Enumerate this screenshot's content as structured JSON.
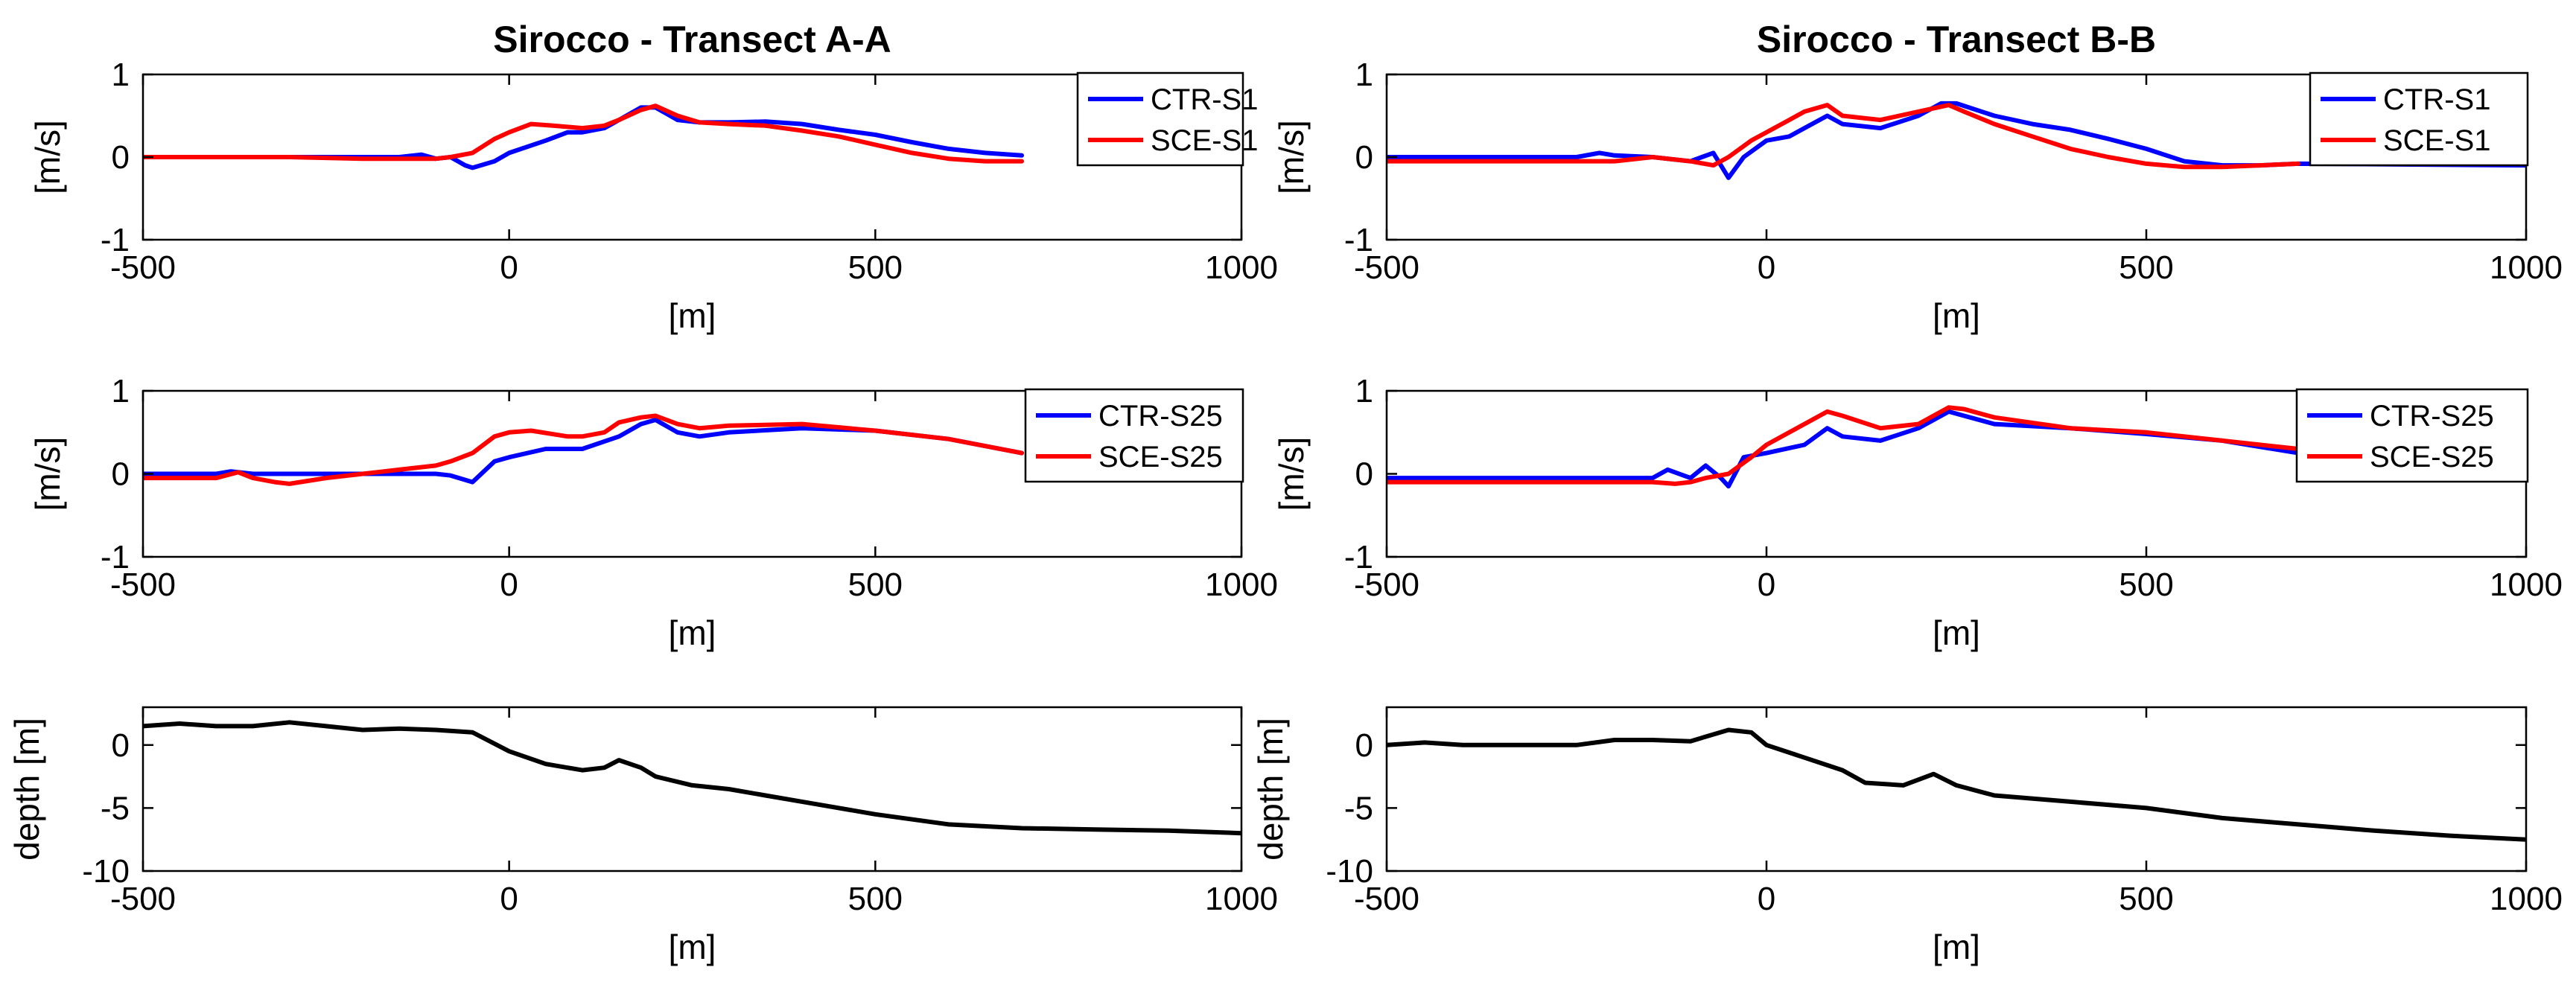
{
  "chart_data": [
    {
      "type": "line",
      "title": "Sirocco - Transect A-A",
      "xlabel": "[m]",
      "ylabel": "[m/s]",
      "xlim": [
        -500,
        1000
      ],
      "ylim": [
        -1,
        1
      ],
      "xticks": [
        -500,
        0,
        500,
        1000
      ],
      "yticks": [
        -1,
        0,
        1
      ],
      "legend": "top-right",
      "series": [
        {
          "name": "CTR-S1",
          "color": "#0000ff",
          "x": [
            -500,
            -400,
            -300,
            -200,
            -150,
            -120,
            -100,
            -80,
            -60,
            -50,
            -20,
            0,
            50,
            80,
            100,
            130,
            150,
            180,
            200,
            230,
            260,
            300,
            350,
            400,
            450,
            500,
            550,
            600,
            650,
            700
          ],
          "y": [
            0,
            0,
            0,
            0,
            0,
            0.03,
            -0.02,
            0,
            -0.1,
            -0.13,
            -0.05,
            0.05,
            0.2,
            0.3,
            0.3,
            0.35,
            0.45,
            0.6,
            0.6,
            0.45,
            0.42,
            0.42,
            0.43,
            0.4,
            0.33,
            0.27,
            0.18,
            0.1,
            0.05,
            0.02
          ]
        },
        {
          "name": "SCE-S1",
          "color": "#ff0000",
          "x": [
            -500,
            -400,
            -300,
            -200,
            -150,
            -100,
            -80,
            -50,
            -20,
            0,
            30,
            60,
            100,
            130,
            150,
            180,
            200,
            230,
            260,
            300,
            350,
            400,
            450,
            500,
            550,
            600,
            650,
            700
          ],
          "y": [
            0,
            0,
            0,
            -0.02,
            -0.02,
            -0.02,
            0,
            0.05,
            0.22,
            0.3,
            0.4,
            0.38,
            0.35,
            0.38,
            0.45,
            0.57,
            0.62,
            0.5,
            0.42,
            0.4,
            0.38,
            0.32,
            0.25,
            0.15,
            0.05,
            -0.02,
            -0.05,
            -0.05
          ]
        }
      ]
    },
    {
      "type": "line",
      "title": "Sirocco - Transect B-B",
      "xlabel": "[m]",
      "ylabel": "[m/s]",
      "xlim": [
        -500,
        1000
      ],
      "ylim": [
        -1,
        1
      ],
      "xticks": [
        -500,
        0,
        500,
        1000
      ],
      "yticks": [
        -1,
        0,
        1
      ],
      "legend": "top-right",
      "series": [
        {
          "name": "CTR-S1",
          "color": "#0000ff",
          "x": [
            -500,
            -400,
            -300,
            -250,
            -220,
            -200,
            -150,
            -100,
            -70,
            -50,
            -30,
            0,
            30,
            50,
            80,
            100,
            150,
            200,
            230,
            250,
            300,
            350,
            400,
            450,
            500,
            550,
            600,
            650,
            700,
            1000
          ],
          "y": [
            0,
            0,
            0,
            0,
            0.05,
            0.02,
            0,
            -0.05,
            0.05,
            -0.25,
            0,
            0.2,
            0.25,
            0.35,
            0.5,
            0.4,
            0.35,
            0.5,
            0.65,
            0.65,
            0.5,
            0.4,
            0.33,
            0.22,
            0.1,
            -0.05,
            -0.1,
            -0.1,
            -0.08,
            -0.1
          ]
        },
        {
          "name": "SCE-S1",
          "color": "#ff0000",
          "x": [
            -500,
            -400,
            -300,
            -200,
            -150,
            -100,
            -70,
            -50,
            -20,
            0,
            30,
            50,
            80,
            100,
            150,
            200,
            240,
            260,
            300,
            350,
            400,
            450,
            500,
            550,
            600,
            650,
            700
          ],
          "y": [
            -0.05,
            -0.05,
            -0.05,
            -0.05,
            0,
            -0.05,
            -0.1,
            0,
            0.2,
            0.3,
            0.45,
            0.55,
            0.63,
            0.5,
            0.45,
            0.55,
            0.63,
            0.55,
            0.4,
            0.25,
            0.1,
            0,
            -0.08,
            -0.12,
            -0.12,
            -0.1,
            -0.08
          ]
        }
      ]
    },
    {
      "type": "line",
      "title": "",
      "xlabel": "[m]",
      "ylabel": "[m/s]",
      "xlim": [
        -500,
        1000
      ],
      "ylim": [
        -1,
        1
      ],
      "xticks": [
        -500,
        0,
        500,
        1000
      ],
      "yticks": [
        -1,
        0,
        1
      ],
      "legend": "top-right",
      "series": [
        {
          "name": "CTR-S25",
          "color": "#0000ff",
          "x": [
            -500,
            -400,
            -380,
            -350,
            -300,
            -200,
            -100,
            -80,
            -50,
            -20,
            0,
            50,
            100,
            150,
            180,
            200,
            230,
            260,
            300,
            400,
            500,
            600,
            700
          ],
          "y": [
            0,
            0,
            0.03,
            0,
            0,
            0,
            0,
            -0.02,
            -0.1,
            0.15,
            0.2,
            0.3,
            0.3,
            0.45,
            0.6,
            0.65,
            0.5,
            0.45,
            0.5,
            0.55,
            0.52,
            0.42,
            0.25
          ]
        },
        {
          "name": "SCE-S25",
          "color": "#ff0000",
          "x": [
            -500,
            -400,
            -370,
            -350,
            -320,
            -300,
            -250,
            -200,
            -150,
            -100,
            -80,
            -50,
            -20,
            0,
            30,
            80,
            100,
            130,
            150,
            180,
            200,
            230,
            260,
            300,
            400,
            500,
            600,
            700
          ],
          "y": [
            -0.05,
            -0.05,
            0.02,
            -0.05,
            -0.1,
            -0.12,
            -0.05,
            0,
            0.05,
            0.1,
            0.15,
            0.25,
            0.45,
            0.5,
            0.52,
            0.45,
            0.45,
            0.5,
            0.62,
            0.68,
            0.7,
            0.6,
            0.55,
            0.58,
            0.6,
            0.52,
            0.42,
            0.25
          ]
        }
      ]
    },
    {
      "type": "line",
      "title": "",
      "xlabel": "[m]",
      "ylabel": "[m/s]",
      "xlim": [
        -500,
        1000
      ],
      "ylim": [
        -1,
        1
      ],
      "xticks": [
        -500,
        0,
        500,
        1000
      ],
      "yticks": [
        -1,
        0,
        1
      ],
      "legend": "top-right",
      "series": [
        {
          "name": "CTR-S25",
          "color": "#0000ff",
          "x": [
            -500,
            -400,
            -300,
            -200,
            -150,
            -130,
            -100,
            -80,
            -60,
            -50,
            -30,
            0,
            50,
            80,
            100,
            150,
            200,
            240,
            260,
            300,
            400,
            500,
            600,
            700
          ],
          "y": [
            -0.05,
            -0.05,
            -0.05,
            -0.05,
            -0.05,
            0.05,
            -0.05,
            0.1,
            -0.05,
            -0.15,
            0.2,
            0.25,
            0.35,
            0.55,
            0.45,
            0.4,
            0.55,
            0.75,
            0.7,
            0.6,
            0.55,
            0.48,
            0.4,
            0.25
          ]
        },
        {
          "name": "SCE-S25",
          "color": "#ff0000",
          "x": [
            -500,
            -400,
            -300,
            -200,
            -150,
            -120,
            -100,
            -80,
            -50,
            -20,
            0,
            30,
            50,
            80,
            100,
            150,
            200,
            240,
            260,
            300,
            400,
            500,
            600,
            700
          ],
          "y": [
            -0.1,
            -0.1,
            -0.1,
            -0.1,
            -0.1,
            -0.12,
            -0.1,
            -0.05,
            0,
            0.2,
            0.35,
            0.5,
            0.6,
            0.75,
            0.7,
            0.55,
            0.6,
            0.8,
            0.78,
            0.68,
            0.55,
            0.5,
            0.4,
            0.3
          ]
        }
      ]
    },
    {
      "type": "line",
      "title": "",
      "xlabel": "[m]",
      "ylabel": "depth [m]",
      "xlim": [
        -500,
        1000
      ],
      "ylim": [
        -10,
        3
      ],
      "xticks": [
        -500,
        0,
        500,
        1000
      ],
      "yticks": [
        -10,
        -5,
        0
      ],
      "legend": "none",
      "series": [
        {
          "name": "depth",
          "color": "#000000",
          "x": [
            -500,
            -450,
            -400,
            -350,
            -300,
            -250,
            -200,
            -150,
            -100,
            -50,
            0,
            50,
            100,
            130,
            150,
            180,
            200,
            250,
            300,
            350,
            400,
            500,
            600,
            700,
            800,
            900,
            1000
          ],
          "y": [
            1.5,
            1.7,
            1.5,
            1.5,
            1.8,
            1.5,
            1.2,
            1.3,
            1.2,
            1.0,
            -0.5,
            -1.5,
            -2.0,
            -1.8,
            -1.2,
            -1.8,
            -2.5,
            -3.2,
            -3.5,
            -4.0,
            -4.5,
            -5.5,
            -6.3,
            -6.6,
            -6.7,
            -6.8,
            -7.0
          ]
        }
      ]
    },
    {
      "type": "line",
      "title": "",
      "xlabel": "[m]",
      "ylabel": "depth [m]",
      "xlim": [
        -500,
        1000
      ],
      "ylim": [
        -10,
        3
      ],
      "xticks": [
        -500,
        0,
        500,
        1000
      ],
      "yticks": [
        -10,
        -5,
        0
      ],
      "legend": "none",
      "series": [
        {
          "name": "depth",
          "color": "#000000",
          "x": [
            -500,
            -450,
            -400,
            -300,
            -250,
            -200,
            -150,
            -100,
            -50,
            -20,
            0,
            50,
            100,
            130,
            180,
            220,
            250,
            300,
            400,
            500,
            600,
            700,
            800,
            900,
            1000
          ],
          "y": [
            0,
            0.2,
            0,
            0,
            0,
            0.4,
            0.4,
            0.3,
            1.2,
            1.0,
            0,
            -1.0,
            -2.0,
            -3.0,
            -3.2,
            -2.3,
            -3.2,
            -4.0,
            -4.5,
            -5.0,
            -5.8,
            -6.3,
            -6.8,
            -7.2,
            -7.5
          ]
        }
      ]
    }
  ]
}
